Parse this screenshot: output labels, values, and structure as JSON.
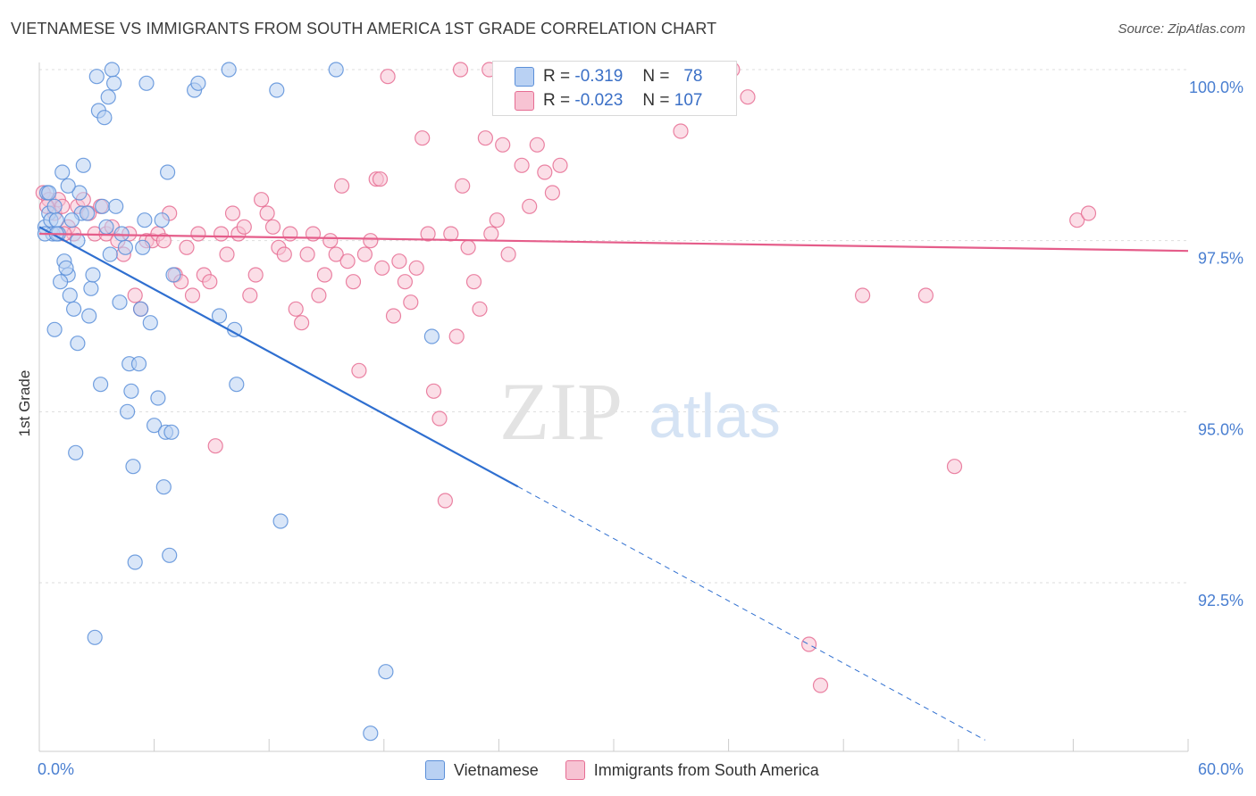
{
  "title": "VIETNAMESE VS IMMIGRANTS FROM SOUTH AMERICA 1ST GRADE CORRELATION CHART",
  "source": "Source: ZipAtlas.com",
  "watermark": {
    "zip": "ZIP",
    "atlas": "atlas"
  },
  "colors": {
    "blue": "#5b8fd9",
    "blue_fill": "#b9d1f3",
    "pink": "#e66d93",
    "pink_fill": "#f7c3d3",
    "axis_text": "#4a7fd1",
    "grid": "#dddddd"
  },
  "stats": {
    "r_label": "R =",
    "n_label": "N =",
    "rows": [
      {
        "r": "-0.319",
        "n": "78"
      },
      {
        "r": "-0.023",
        "n": "107"
      }
    ]
  },
  "chart_data": {
    "type": "scatter",
    "xlabel": "",
    "ylabel": "1st Grade",
    "xlim": [
      0,
      60
    ],
    "ylim": [
      90.2,
      100.4
    ],
    "x_tick_labels": {
      "min": "0.0%",
      "max": "60.0%"
    },
    "y_ticks": [
      {
        "value": 100.0,
        "label": "100.0%"
      },
      {
        "value": 97.5,
        "label": "97.5%"
      },
      {
        "value": 95.0,
        "label": "95.0%"
      },
      {
        "value": 92.5,
        "label": "92.5%"
      }
    ],
    "legend": [
      "Vietnamese",
      "Immigrants from South America"
    ],
    "series": [
      {
        "name": "Vietnamese",
        "color": "#5b8fd9",
        "trend": {
          "x0": 0,
          "y0": 97.7,
          "x_solid_end": 25,
          "x1": 49.4,
          "y1": 90.2
        },
        "points": [
          [
            0.3,
            97.7
          ],
          [
            0.4,
            98.2
          ],
          [
            0.5,
            97.9
          ],
          [
            0.6,
            97.8
          ],
          [
            0.7,
            97.6
          ],
          [
            0.8,
            98.0
          ],
          [
            0.9,
            97.8
          ],
          [
            1.0,
            97.6
          ],
          [
            0.3,
            97.6
          ],
          [
            0.5,
            98.2
          ],
          [
            1.2,
            98.5
          ],
          [
            1.3,
            97.2
          ],
          [
            1.5,
            97.0
          ],
          [
            1.6,
            96.7
          ],
          [
            1.8,
            96.5
          ],
          [
            2.0,
            97.5
          ],
          [
            2.1,
            98.2
          ],
          [
            2.2,
            97.9
          ],
          [
            2.3,
            98.6
          ],
          [
            2.5,
            97.9
          ],
          [
            2.6,
            96.4
          ],
          [
            2.7,
            96.8
          ],
          [
            2.8,
            97.0
          ],
          [
            3.0,
            99.9
          ],
          [
            3.1,
            99.4
          ],
          [
            3.2,
            95.4
          ],
          [
            3.3,
            98.0
          ],
          [
            3.4,
            99.3
          ],
          [
            3.5,
            97.7
          ],
          [
            3.6,
            99.6
          ],
          [
            3.8,
            100.0
          ],
          [
            3.9,
            99.8
          ],
          [
            4.0,
            98.0
          ],
          [
            4.2,
            96.6
          ],
          [
            4.5,
            97.4
          ],
          [
            4.6,
            95.0
          ],
          [
            4.7,
            95.7
          ],
          [
            4.8,
            95.3
          ],
          [
            4.9,
            94.2
          ],
          [
            5.0,
            92.8
          ],
          [
            5.2,
            95.7
          ],
          [
            5.3,
            96.5
          ],
          [
            5.4,
            97.4
          ],
          [
            5.5,
            97.8
          ],
          [
            5.6,
            99.8
          ],
          [
            5.8,
            96.3
          ],
          [
            6.0,
            94.8
          ],
          [
            6.2,
            95.2
          ],
          [
            6.4,
            97.8
          ],
          [
            6.5,
            93.9
          ],
          [
            6.6,
            94.7
          ],
          [
            6.7,
            98.5
          ],
          [
            6.8,
            92.9
          ],
          [
            6.9,
            94.7
          ],
          [
            7.0,
            97.0
          ],
          [
            8.1,
            99.7
          ],
          [
            8.3,
            99.8
          ],
          [
            9.4,
            96.4
          ],
          [
            9.9,
            100.0
          ],
          [
            10.2,
            96.2
          ],
          [
            10.3,
            95.4
          ],
          [
            12.4,
            99.7
          ],
          [
            12.6,
            93.4
          ],
          [
            15.5,
            100.0
          ],
          [
            17.3,
            90.3
          ],
          [
            18.1,
            91.2
          ],
          [
            20.5,
            96.1
          ],
          [
            0.8,
            96.2
          ],
          [
            1.1,
            96.9
          ],
          [
            2.0,
            96.0
          ],
          [
            1.9,
            94.4
          ],
          [
            1.7,
            97.8
          ],
          [
            4.3,
            97.6
          ],
          [
            2.9,
            91.7
          ],
          [
            1.4,
            97.1
          ],
          [
            3.7,
            97.3
          ],
          [
            1.5,
            98.3
          ],
          [
            0.9,
            97.6
          ]
        ]
      },
      {
        "name": "Immigrants from South America",
        "color": "#e66d93",
        "trend": {
          "x0": 0,
          "y0": 97.6,
          "x1": 60,
          "y1": 97.35
        },
        "points": [
          [
            0.2,
            98.2
          ],
          [
            0.5,
            98.1
          ],
          [
            0.8,
            97.9
          ],
          [
            1.0,
            98.1
          ],
          [
            1.2,
            98.0
          ],
          [
            1.5,
            97.7
          ],
          [
            1.8,
            97.6
          ],
          [
            2.0,
            98.0
          ],
          [
            2.3,
            98.1
          ],
          [
            2.6,
            97.9
          ],
          [
            2.9,
            97.6
          ],
          [
            3.2,
            98.0
          ],
          [
            3.5,
            97.6
          ],
          [
            3.8,
            97.7
          ],
          [
            4.1,
            97.5
          ],
          [
            4.4,
            97.3
          ],
          [
            4.7,
            97.6
          ],
          [
            5.0,
            96.7
          ],
          [
            5.3,
            96.5
          ],
          [
            5.6,
            97.5
          ],
          [
            5.9,
            97.5
          ],
          [
            6.2,
            97.6
          ],
          [
            6.5,
            97.5
          ],
          [
            6.8,
            97.9
          ],
          [
            7.1,
            97.0
          ],
          [
            7.4,
            96.9
          ],
          [
            7.7,
            97.4
          ],
          [
            8.0,
            96.7
          ],
          [
            8.3,
            97.6
          ],
          [
            8.6,
            97.0
          ],
          [
            8.9,
            96.9
          ],
          [
            9.2,
            94.5
          ],
          [
            9.5,
            97.6
          ],
          [
            9.8,
            97.3
          ],
          [
            10.1,
            97.9
          ],
          [
            10.4,
            97.6
          ],
          [
            10.7,
            97.7
          ],
          [
            11.0,
            96.7
          ],
          [
            11.3,
            97.0
          ],
          [
            11.6,
            98.1
          ],
          [
            11.9,
            97.9
          ],
          [
            12.2,
            97.7
          ],
          [
            12.5,
            97.4
          ],
          [
            12.8,
            97.3
          ],
          [
            13.1,
            97.6
          ],
          [
            13.4,
            96.5
          ],
          [
            13.7,
            96.3
          ],
          [
            14.0,
            97.3
          ],
          [
            14.3,
            97.6
          ],
          [
            14.6,
            96.7
          ],
          [
            14.9,
            97.0
          ],
          [
            15.2,
            97.5
          ],
          [
            15.5,
            97.3
          ],
          [
            15.8,
            98.3
          ],
          [
            16.1,
            97.2
          ],
          [
            16.4,
            96.9
          ],
          [
            16.7,
            95.6
          ],
          [
            17.0,
            97.3
          ],
          [
            17.3,
            97.5
          ],
          [
            17.6,
            98.4
          ],
          [
            17.9,
            97.1
          ],
          [
            18.2,
            99.9
          ],
          [
            18.5,
            96.4
          ],
          [
            18.8,
            97.2
          ],
          [
            19.1,
            96.9
          ],
          [
            19.4,
            96.6
          ],
          [
            19.7,
            97.1
          ],
          [
            20.0,
            99.0
          ],
          [
            20.3,
            97.6
          ],
          [
            20.6,
            95.3
          ],
          [
            20.9,
            94.9
          ],
          [
            21.2,
            93.7
          ],
          [
            21.5,
            97.6
          ],
          [
            21.8,
            96.1
          ],
          [
            22.1,
            98.3
          ],
          [
            22.4,
            97.4
          ],
          [
            22.7,
            96.9
          ],
          [
            23.0,
            96.5
          ],
          [
            23.3,
            99.0
          ],
          [
            23.6,
            97.6
          ],
          [
            23.9,
            97.8
          ],
          [
            24.2,
            98.9
          ],
          [
            24.5,
            97.3
          ],
          [
            25.2,
            98.6
          ],
          [
            25.6,
            98.0
          ],
          [
            26.0,
            98.9
          ],
          [
            26.4,
            98.5
          ],
          [
            26.8,
            98.2
          ],
          [
            27.2,
            98.6
          ],
          [
            22.0,
            100.0
          ],
          [
            23.5,
            100.0
          ],
          [
            27.5,
            100.0
          ],
          [
            32.8,
            99.6
          ],
          [
            33.5,
            99.1
          ],
          [
            34.5,
            99.9
          ],
          [
            36.2,
            100.0
          ],
          [
            37.0,
            99.6
          ],
          [
            40.2,
            91.6
          ],
          [
            40.8,
            91.0
          ],
          [
            43.0,
            96.7
          ],
          [
            46.3,
            96.7
          ],
          [
            47.8,
            94.2
          ],
          [
            54.2,
            97.8
          ],
          [
            54.8,
            97.9
          ],
          [
            17.8,
            98.4
          ],
          [
            1.3,
            97.6
          ],
          [
            0.4,
            98.0
          ]
        ]
      }
    ]
  }
}
